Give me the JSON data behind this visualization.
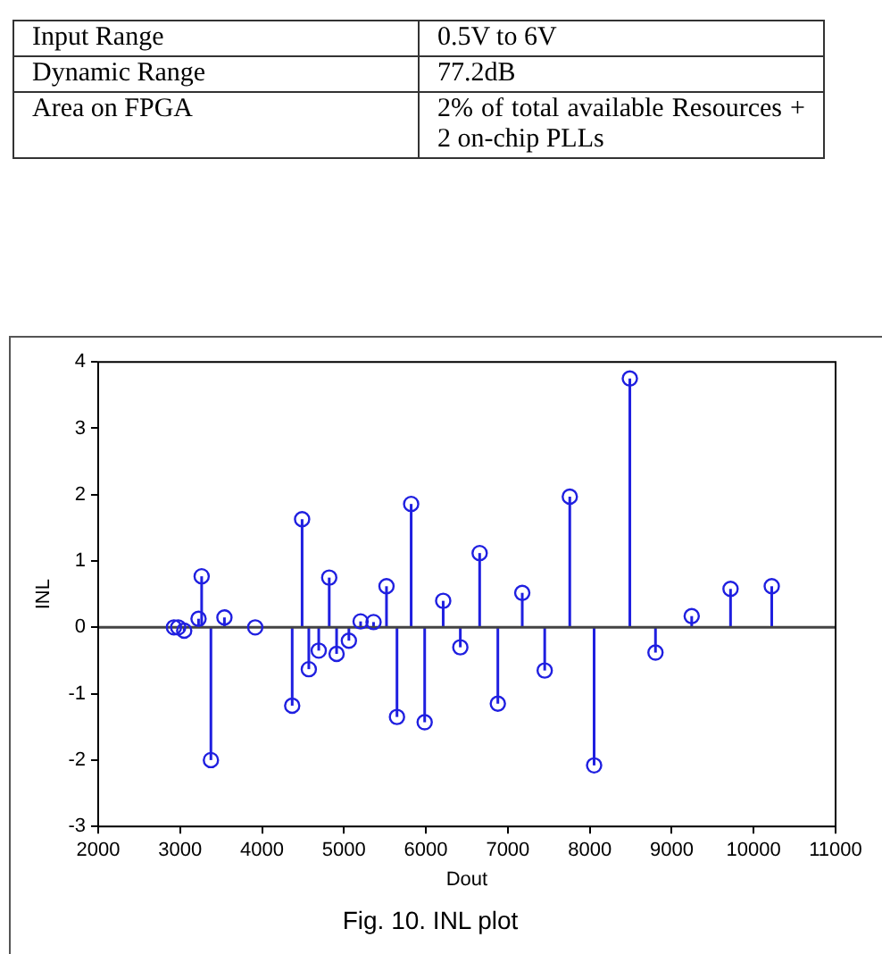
{
  "chart_data": [
    {
      "type": "other",
      "annotations": [
        "Input Range",
        "0.5V to 6V",
        "Dynamic Range",
        "77.2dB",
        "Area on FPGA",
        "2% of total available Resources + 2 on-chip PLLs"
      ]
    },
    {
      "type": "lollipop",
      "xlabel": "Dout",
      "ylabel": "INL",
      "annotations": [
        "Fig. 10. INL plot"
      ],
      "x": [
        2925,
        2977,
        3050,
        3225,
        3263,
        3376,
        3541,
        3917,
        4368,
        4489,
        4571,
        4692,
        4820,
        4910,
        5060,
        5203,
        5361,
        5519,
        5647,
        5820,
        5985,
        6211,
        6420,
        6656,
        6878,
        7176,
        7450,
        7756,
        8053,
        8489,
        8802,
        9244,
        9718,
        10221
      ],
      "series": [
        {
          "color": "#1f1fe0",
          "values": [
            0,
            0,
            -0.05,
            0.13,
            0.77,
            -2.0,
            0.15,
            0.0,
            -1.18,
            1.63,
            -0.63,
            -0.35,
            0.75,
            -0.4,
            -0.2,
            0.09,
            0.08,
            0.62,
            -1.35,
            1.86,
            -1.43,
            0.4,
            -0.3,
            1.12,
            -1.15,
            0.52,
            -0.65,
            1.97,
            -2.08,
            3.75,
            -0.38,
            0.17,
            0.58,
            0.62
          ]
        }
      ],
      "xlim": [
        2000,
        11000
      ],
      "xticks": [
        2000,
        3000,
        4000,
        5000,
        6000,
        7000,
        8000,
        9000,
        10000,
        11000
      ],
      "ylim": [
        -3,
        4
      ],
      "yticks": [
        -3,
        -2,
        -1,
        0,
        1,
        2,
        3,
        4
      ],
      "ref_lines": [
        {
          "axis": "y",
          "value": 0,
          "color": "#444444"
        }
      ],
      "marker": "circle",
      "grid": false,
      "legend": false
    }
  ]
}
